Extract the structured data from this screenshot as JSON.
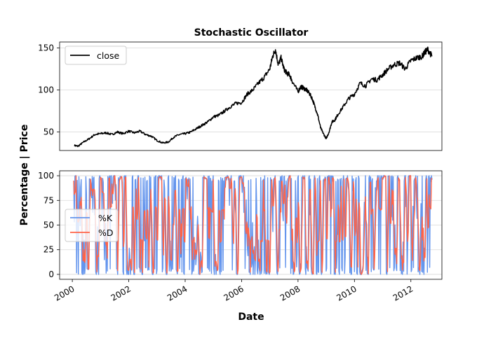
{
  "chart_data": [
    {
      "type": "line",
      "title": "Stochastic Oscillator",
      "xlabel": "",
      "ylabel": "",
      "ylim": [
        28,
        157
      ],
      "xlim": [
        1999.55,
        2013.1
      ],
      "yticks": [
        50,
        100,
        150
      ],
      "grid": "horizontal",
      "legend_position": "upper-left",
      "series": [
        {
          "name": "close",
          "color": "#000000",
          "x": [
            2000.08,
            2000.2,
            2000.4,
            2000.6,
            2000.8,
            2001.0,
            2001.2,
            2001.4,
            2001.6,
            2001.8,
            2002.0,
            2002.2,
            2002.4,
            2002.6,
            2002.8,
            2003.0,
            2003.2,
            2003.4,
            2003.6,
            2003.8,
            2004.0,
            2004.2,
            2004.4,
            2004.6,
            2004.8,
            2005.0,
            2005.2,
            2005.4,
            2005.6,
            2005.8,
            2006.0,
            2006.2,
            2006.4,
            2006.6,
            2006.8,
            2007.0,
            2007.1,
            2007.2,
            2007.3,
            2007.4,
            2007.5,
            2007.6,
            2007.7,
            2007.8,
            2008.0,
            2008.1,
            2008.2,
            2008.3,
            2008.4,
            2008.5,
            2008.6,
            2008.7,
            2008.8,
            2008.9,
            2009.0,
            2009.1,
            2009.2,
            2009.3,
            2009.4,
            2009.6,
            2009.8,
            2010.0,
            2010.2,
            2010.4,
            2010.6,
            2010.8,
            2011.0,
            2011.2,
            2011.4,
            2011.6,
            2011.8,
            2012.0,
            2012.2,
            2012.4,
            2012.5,
            2012.6,
            2012.75
          ],
          "y": [
            34,
            33,
            38,
            42,
            47,
            48,
            49,
            47,
            50,
            48,
            51,
            49,
            51,
            47,
            45,
            40,
            37,
            38,
            44,
            47,
            48,
            50,
            54,
            58,
            62,
            68,
            70,
            75,
            80,
            84,
            85,
            95,
            100,
            108,
            115,
            125,
            140,
            148,
            130,
            138,
            125,
            120,
            118,
            110,
            98,
            104,
            102,
            100,
            96,
            90,
            80,
            70,
            55,
            48,
            42,
            50,
            62,
            64,
            70,
            80,
            90,
            95,
            108,
            105,
            113,
            112,
            118,
            125,
            130,
            132,
            125,
            135,
            138,
            140,
            145,
            148,
            140
          ]
        }
      ]
    },
    {
      "type": "line",
      "title": "",
      "xlabel": "Date",
      "ylabel": "",
      "ylim": [
        -5,
        105
      ],
      "xlim": [
        1999.55,
        2013.1
      ],
      "yticks": [
        0,
        25,
        50,
        75,
        100
      ],
      "xticks": [
        2000,
        2002,
        2004,
        2006,
        2008,
        2010,
        2012
      ],
      "grid": "horizontal",
      "legend_position": "center-left",
      "series": [
        {
          "name": "%K",
          "color": "#6495ED",
          "x_start": 2000.05,
          "x_end": 2012.75
        },
        {
          "name": "%D",
          "color": "#FF6347",
          "x_start": 2000.05,
          "x_end": 2012.75
        }
      ]
    }
  ],
  "shared_ylabel": "Percentage | Price",
  "x_tick_labels": [
    "2000",
    "2002",
    "2004",
    "2006",
    "2008",
    "2010",
    "2012"
  ]
}
